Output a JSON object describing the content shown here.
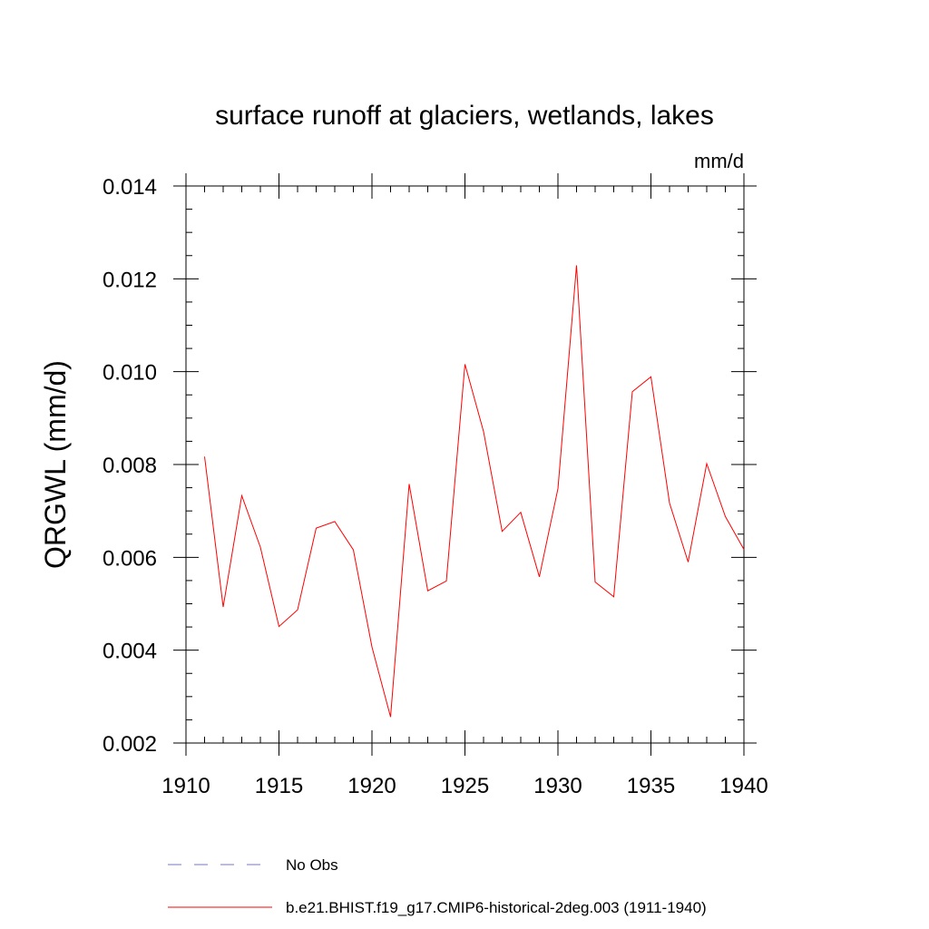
{
  "chart_data": {
    "type": "line",
    "title": "surface runoff at glaciers, wetlands, lakes",
    "units": "mm/d",
    "ylabel": "QRGWL  (mm/d)",
    "xlabel": "",
    "xlim": [
      1910,
      1940
    ],
    "ylim": [
      0.002,
      0.014
    ],
    "x_ticks": [
      1910,
      1915,
      1920,
      1925,
      1930,
      1935,
      1940
    ],
    "x_tick_labels": [
      "1910",
      "1915",
      "1920",
      "1925",
      "1930",
      "1935",
      "1940"
    ],
    "y_ticks": [
      0.002,
      0.004,
      0.006,
      0.008,
      0.01,
      0.012,
      0.014
    ],
    "y_tick_labels": [
      "0.002",
      "0.004",
      "0.006",
      "0.008",
      "0.010",
      "0.012",
      "0.014"
    ],
    "x_minor_step": 1,
    "y_minor_step": 0.0005,
    "grid": false,
    "legend_position": "bottom",
    "series": [
      {
        "name": "b.e21.BHIST.f19_g17.CMIP6-historical-2deg.003 (1911-1940)",
        "color": "#ff0000",
        "dash": "solid",
        "x": [
          1911,
          1912,
          1913,
          1914,
          1915,
          1916,
          1917,
          1918,
          1919,
          1920,
          1921,
          1922,
          1923,
          1924,
          1925,
          1926,
          1927,
          1928,
          1929,
          1930,
          1931,
          1932,
          1933,
          1934,
          1935,
          1936,
          1937,
          1938,
          1939,
          1940
        ],
        "values": [
          0.00817,
          0.00493,
          0.00733,
          0.00622,
          0.00451,
          0.00487,
          0.00663,
          0.00677,
          0.00616,
          0.00407,
          0.00256,
          0.00758,
          0.00528,
          0.00549,
          0.01016,
          0.00871,
          0.00656,
          0.00697,
          0.00558,
          0.00748,
          0.01229,
          0.00547,
          0.00515,
          0.00957,
          0.00989,
          0.00717,
          0.0059,
          0.00802,
          0.00688,
          0.00617
        ]
      }
    ],
    "legend": [
      {
        "label": "No Obs",
        "color": "#7777bb",
        "dash": "dashed"
      },
      {
        "label": "b.e21.BHIST.f19_g17.CMIP6-historical-2deg.003 (1911-1940)",
        "color": "#ff0000",
        "dash": "solid"
      }
    ]
  }
}
